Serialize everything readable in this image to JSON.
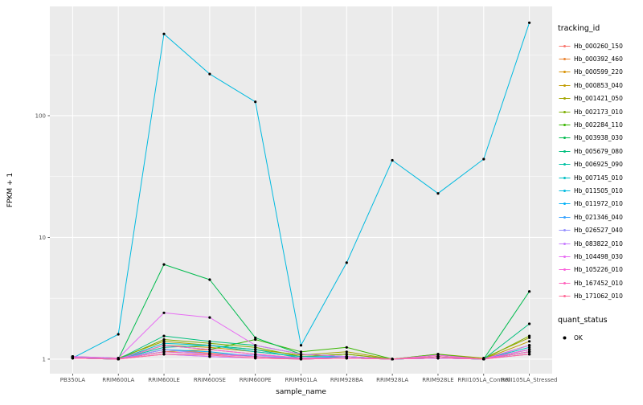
{
  "figure": {
    "background": "#FFFFFF",
    "panel_background": "#EBEBEB",
    "grid_color": "#FFFFFF",
    "tick_text_color": "#4D4D4D",
    "tick_mark_color": "#333333"
  },
  "legend": {
    "tracking_title": "tracking_id",
    "quant_title": "quant_status",
    "quant_entries": [
      {
        "label": "OK"
      }
    ]
  },
  "chart_data": {
    "type": "line",
    "title": "",
    "xlabel": "sample_name",
    "ylabel": "FPKM + 1",
    "y_scale": "log10",
    "ylim": [
      0.76,
      790
    ],
    "y_ticks": [
      1,
      10,
      100
    ],
    "y_tick_labels": [
      "1",
      "10",
      "100"
    ],
    "y_minor_ticks": [
      3.162,
      31.62,
      316.2
    ],
    "grid": true,
    "legend_position": "right",
    "point_color": "#000000",
    "categories": [
      "PB350LA",
      "RRIM600LA",
      "RRIM600LE",
      "RRIM600SE",
      "RRIM600PE",
      "RRIM901LA",
      "RRIM928BA",
      "RRIM928LA",
      "RRIM928LE",
      "RRII105LA_Control",
      "RRII105LA_Stressed"
    ],
    "series": [
      {
        "name": "Hb_000260_150",
        "color": "#F8766D",
        "values": [
          1.02,
          1.0,
          1.1,
          1.05,
          1.02,
          1.0,
          1.02,
          1.0,
          1.05,
          1.0,
          1.15
        ]
      },
      {
        "name": "Hb_000392_460",
        "color": "#EA8331",
        "values": [
          1.05,
          1.0,
          1.2,
          1.12,
          1.05,
          1.0,
          1.05,
          1.0,
          1.05,
          1.0,
          1.2
        ]
      },
      {
        "name": "Hb_000599_220",
        "color": "#D89000",
        "values": [
          1.03,
          1.0,
          1.15,
          1.2,
          1.1,
          1.02,
          1.02,
          1.0,
          1.08,
          1.0,
          1.3
        ]
      },
      {
        "name": "Hb_000853_040",
        "color": "#C09B00",
        "values": [
          1.05,
          1.0,
          1.3,
          1.25,
          1.15,
          1.05,
          1.1,
          1.0,
          1.05,
          1.0,
          1.4
        ]
      },
      {
        "name": "Hb_001421_050",
        "color": "#A3A500",
        "values": [
          1.05,
          1.02,
          1.4,
          1.3,
          1.2,
          1.08,
          1.15,
          1.0,
          1.1,
          1.02,
          1.5
        ]
      },
      {
        "name": "Hb_002173_010",
        "color": "#7CAE00",
        "values": [
          1.02,
          1.0,
          1.45,
          1.35,
          1.25,
          1.05,
          1.1,
          1.0,
          1.02,
          1.0,
          1.55
        ]
      },
      {
        "name": "Hb_002284_110",
        "color": "#39B600",
        "values": [
          1.05,
          1.0,
          1.3,
          1.2,
          1.45,
          1.15,
          1.25,
          1.0,
          1.1,
          1.0,
          1.15
        ]
      },
      {
        "name": "Hb_003938_030",
        "color": "#00BB4E",
        "values": [
          1.02,
          1.0,
          6.0,
          4.5,
          1.5,
          1.1,
          1.05,
          1.0,
          1.02,
          1.0,
          3.6
        ]
      },
      {
        "name": "Hb_005679_080",
        "color": "#00BF7D",
        "values": [
          1.05,
          1.0,
          1.55,
          1.4,
          1.3,
          1.1,
          1.05,
          1.0,
          1.05,
          1.0,
          1.95
        ]
      },
      {
        "name": "Hb_006925_090",
        "color": "#00C1A3",
        "values": [
          1.02,
          1.0,
          1.25,
          1.3,
          1.2,
          1.02,
          1.02,
          1.0,
          1.02,
          1.0,
          1.3
        ]
      },
      {
        "name": "Hb_007145_010",
        "color": "#00BFC4",
        "values": [
          1.03,
          1.0,
          1.35,
          1.3,
          1.15,
          1.05,
          1.05,
          1.0,
          1.05,
          1.0,
          1.25
        ]
      },
      {
        "name": "Hb_011505_010",
        "color": "#00BAE0",
        "values": [
          1.02,
          1.6,
          470,
          220,
          130,
          1.3,
          6.2,
          43,
          23,
          44,
          580
        ]
      },
      {
        "name": "Hb_011972_010",
        "color": "#00B0F6",
        "values": [
          1.02,
          1.0,
          1.2,
          1.15,
          1.05,
          1.0,
          1.02,
          1.0,
          1.02,
          1.0,
          1.2
        ]
      },
      {
        "name": "Hb_021346_040",
        "color": "#35A2FF",
        "values": [
          1.05,
          1.0,
          1.15,
          1.1,
          1.05,
          1.02,
          1.05,
          1.0,
          1.02,
          1.0,
          1.15
        ]
      },
      {
        "name": "Hb_026527_040",
        "color": "#9590FF",
        "values": [
          1.03,
          1.0,
          1.2,
          1.1,
          1.08,
          1.02,
          1.02,
          1.0,
          1.05,
          1.0,
          1.1
        ]
      },
      {
        "name": "Hb_083822_010",
        "color": "#C77CFF",
        "values": [
          1.02,
          1.0,
          1.1,
          1.05,
          1.02,
          1.0,
          1.02,
          1.0,
          1.02,
          1.0,
          1.1
        ]
      },
      {
        "name": "Hb_104498_030",
        "color": "#E76BF3",
        "values": [
          1.05,
          1.02,
          2.4,
          2.2,
          1.3,
          1.1,
          1.05,
          1.0,
          1.08,
          1.0,
          1.3
        ]
      },
      {
        "name": "Hb_105226_010",
        "color": "#FA62DB",
        "values": [
          1.02,
          1.0,
          1.3,
          1.2,
          1.1,
          1.02,
          1.02,
          1.0,
          1.05,
          1.0,
          1.2
        ]
      },
      {
        "name": "Hb_167452_010",
        "color": "#FF62BC",
        "values": [
          1.03,
          1.0,
          1.15,
          1.1,
          1.05,
          1.0,
          1.02,
          1.0,
          1.02,
          1.0,
          1.15
        ]
      },
      {
        "name": "Hb_171062_010",
        "color": "#FF6A98",
        "values": [
          1.02,
          1.0,
          1.1,
          1.08,
          1.02,
          1.0,
          1.02,
          1.0,
          1.05,
          1.0,
          1.1
        ]
      }
    ]
  }
}
